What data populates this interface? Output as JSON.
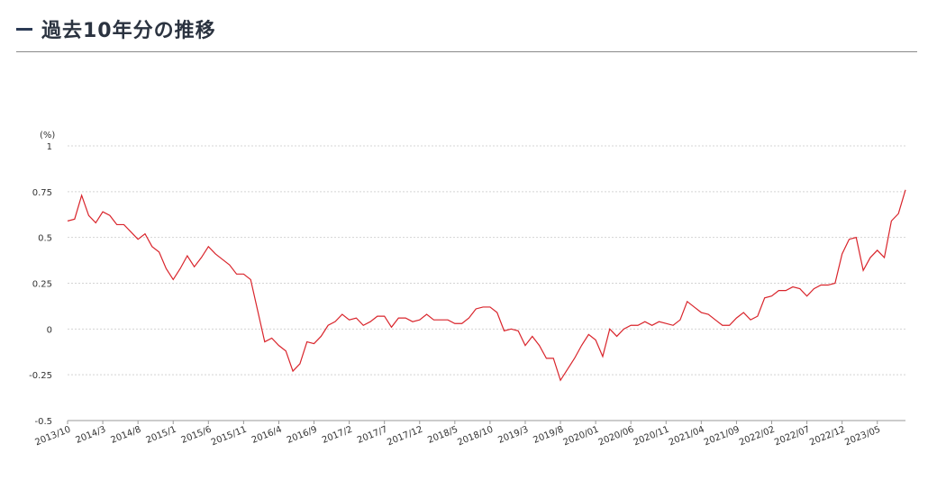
{
  "header": {
    "title": "過去10年分の推移"
  },
  "chart_data": {
    "type": "line",
    "title": "過去10年分の推移",
    "ylabel": "(%)",
    "xlabel": "",
    "ylim": [
      -0.5,
      1
    ],
    "yticks": [
      "1",
      "0.75",
      "0.5",
      "0.25",
      "0",
      "-0.25",
      "-0.5"
    ],
    "ytick_values": [
      1,
      0.75,
      0.5,
      0.25,
      0,
      -0.25,
      -0.5
    ],
    "grid": true,
    "legend": "none",
    "line_color": "#d9242b",
    "xtick_labels": [
      "2013/10",
      "2014/3",
      "2014/8",
      "2015/1",
      "2015/6",
      "2015/11",
      "2016/4",
      "2016/9",
      "2017/2",
      "2017/7",
      "2017/12",
      "2018/5",
      "2018/10",
      "2019/3",
      "2019/8",
      "2020/01",
      "2020/06",
      "2020/11",
      "2021/04",
      "2021/09",
      "2022/02",
      "2022/07",
      "2022/12",
      "2023/05"
    ],
    "xtick_index": [
      0,
      5,
      10,
      15,
      20,
      25,
      30,
      35,
      40,
      45,
      50,
      55,
      60,
      65,
      70,
      75,
      80,
      85,
      90,
      95,
      100,
      105,
      110,
      115
    ],
    "series": [
      {
        "values": [
          0.59,
          0.6,
          0.73,
          0.62,
          0.58,
          0.64,
          0.62,
          0.57,
          0.57,
          0.53,
          0.49,
          0.52,
          0.45,
          0.42,
          0.33,
          0.27,
          0.33,
          0.4,
          0.34,
          0.39,
          0.45,
          0.41,
          0.38,
          0.35,
          0.3,
          0.3,
          0.27,
          0.1,
          -0.07,
          -0.05,
          -0.09,
          -0.12,
          -0.23,
          -0.19,
          -0.07,
          -0.08,
          -0.04,
          0.02,
          0.04,
          0.08,
          0.05,
          0.06,
          0.02,
          0.04,
          0.07,
          0.07,
          0.01,
          0.06,
          0.06,
          0.04,
          0.05,
          0.08,
          0.05,
          0.05,
          0.05,
          0.03,
          0.03,
          0.06,
          0.11,
          0.12,
          0.12,
          0.09,
          -0.01,
          0.0,
          -0.01,
          -0.09,
          -0.04,
          -0.09,
          -0.16,
          -0.16,
          -0.28,
          -0.22,
          -0.16,
          -0.09,
          -0.03,
          -0.06,
          -0.15,
          0.0,
          -0.04,
          0.0,
          0.02,
          0.02,
          0.04,
          0.02,
          0.04,
          0.03,
          0.02,
          0.05,
          0.15,
          0.12,
          0.09,
          0.08,
          0.05,
          0.02,
          0.02,
          0.06,
          0.09,
          0.05,
          0.07,
          0.17,
          0.18,
          0.21,
          0.21,
          0.23,
          0.22,
          0.18,
          0.22,
          0.24,
          0.24,
          0.25,
          0.41,
          0.49,
          0.5,
          0.32,
          0.39,
          0.43,
          0.39,
          0.59,
          0.63,
          0.76
        ]
      }
    ]
  }
}
